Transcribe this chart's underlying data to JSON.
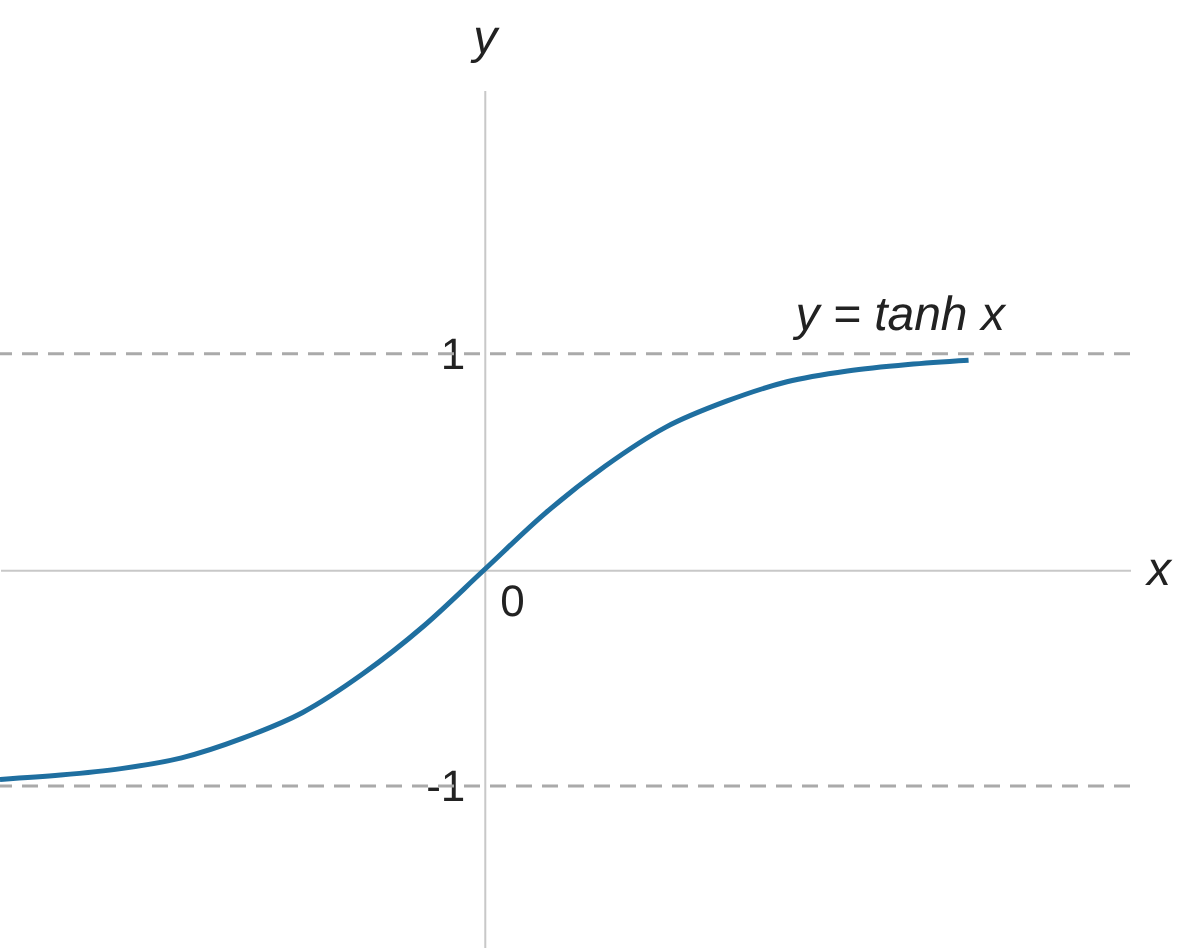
{
  "chart_data": {
    "type": "line",
    "xlabel": "x",
    "ylabel": "y",
    "categories": [
      null,
      null,
      null,
      null,
      null,
      null,
      null,
      null,
      null,
      null,
      null,
      null,
      null,
      null,
      null,
      null,
      null
    ],
    "series": [
      {
        "color": "#1f6fa0",
        "values": [
          -0.97,
          -0.95,
          -0.92,
          -0.87,
          -0.78,
          -0.66,
          -0.48,
          -0.26,
          0,
          0.26,
          0.48,
          0.66,
          0.78,
          0.87,
          0.92,
          0.95,
          0.97
        ]
      }
    ],
    "ylim": [
      -1.75,
      2.22
    ],
    "yticks": [
      {
        "value": -1,
        "label": "-1"
      },
      {
        "value": 1,
        "label": "1"
      }
    ],
    "ref_lines": [
      {
        "axis": "y",
        "value": 1,
        "color": "#aaaaaa",
        "line_style": "dashed"
      },
      {
        "axis": "y",
        "value": -1,
        "color": "#aaaaaa",
        "line_style": "dashed"
      }
    ],
    "annotations": [
      "0",
      "y = tanh x"
    ],
    "grid": false,
    "marker": "none",
    "line_style": "solid"
  }
}
